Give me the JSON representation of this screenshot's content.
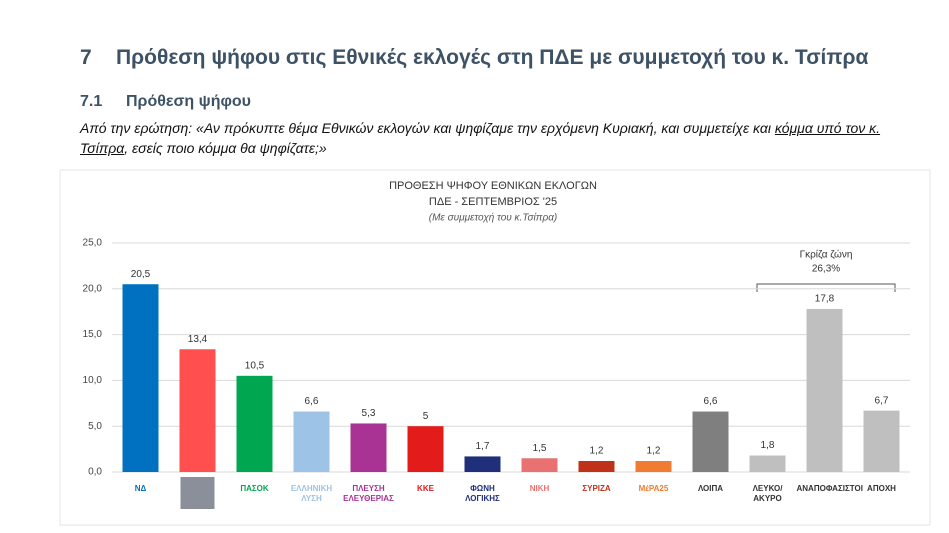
{
  "header": {
    "section_number": "7",
    "title": "Πρόθεση ψήφου στις Εθνικές εκλογές στη ΠΔΕ με συμμετοχή του κ. Τσίπρα",
    "subsection_number": "7.1",
    "subtitle": "Πρόθεση ψήφου",
    "question": [
      "Από την ερώτηση: «Αν πρόκυπτε θέμα Εθνικών εκλογών και ψηφίζαμε την ερχόμενη Κυριακή, και συμμετείχε και ",
      "κόμμα υπό τον κ. Τσίπρα",
      ", εσείς ποιο κόμμα θα ψηφίζατε;»"
    ]
  },
  "chart_data": {
    "type": "bar",
    "title": "ΠΡΟΘΕΣΗ ΨΗΦΟΥ  ΕΘΝΙΚΩΝ ΕΚΛΟΓΩΝ",
    "subtitle": "ΠΔΕ - ΣΕΠΤΕΜΒΡΙΟΣ '25",
    "note": "(Με συμμετοχή του κ.Τσίπρα)",
    "categories": [
      "ΝΔ",
      null,
      "ΠΑΣΟΚ",
      "ΕΛΛΗΝΙΚΗ ΛΥΣΗ",
      "ΠΛΕΥΣΗ ΕΛΕΥΘΕΡΙΑΣ",
      "ΚΚΕ",
      "ΦΩΝΗ ΛΟΓΙΚΗΣ",
      "ΝΙΚΗ",
      "ΣΥΡΙΖΑ",
      "ΜέΡΑ25",
      "ΛΟΙΠΑ",
      "ΛΕΥΚΟ/ ΑΚΥΡΟ",
      "ΑΝΑΠΟΦΑΣΙΣΤΟΙ",
      "ΑΠΟΧΗ"
    ],
    "values": [
      20.5,
      13.4,
      10.5,
      6.6,
      5.3,
      5,
      1.7,
      1.5,
      1.2,
      1.2,
      6.6,
      1.8,
      17.8,
      6.7
    ],
    "value_labels": [
      "20,5",
      "13,4",
      "10,5",
      "6,6",
      "5,3",
      "5",
      "1,7",
      "1,5",
      "1,2",
      "1,2",
      "6,6",
      "1,8",
      "17,8",
      "6,7"
    ],
    "colors": [
      "#0070c0",
      "#ff4f4f",
      "#00a650",
      "#9dc3e6",
      "#a93395",
      "#e31b1b",
      "#1f2f7a",
      "#e97171",
      "#c0311a",
      "#f07c32",
      "#7f7f7f",
      "#bfbfbf",
      "#bfbfbf",
      "#bfbfbf"
    ],
    "ylim": [
      0,
      25
    ],
    "yticks": [
      {
        "value": 0,
        "label": "0,0"
      },
      {
        "value": 5,
        "label": "5,0"
      },
      {
        "value": 10,
        "label": "10,0"
      },
      {
        "value": 15,
        "label": "15,0"
      },
      {
        "value": 20,
        "label": "20,0"
      },
      {
        "value": 25,
        "label": "25,0"
      }
    ],
    "grid": true,
    "annotation": {
      "text": "Γκρίζα ζώνη",
      "value": "26,3%"
    }
  }
}
